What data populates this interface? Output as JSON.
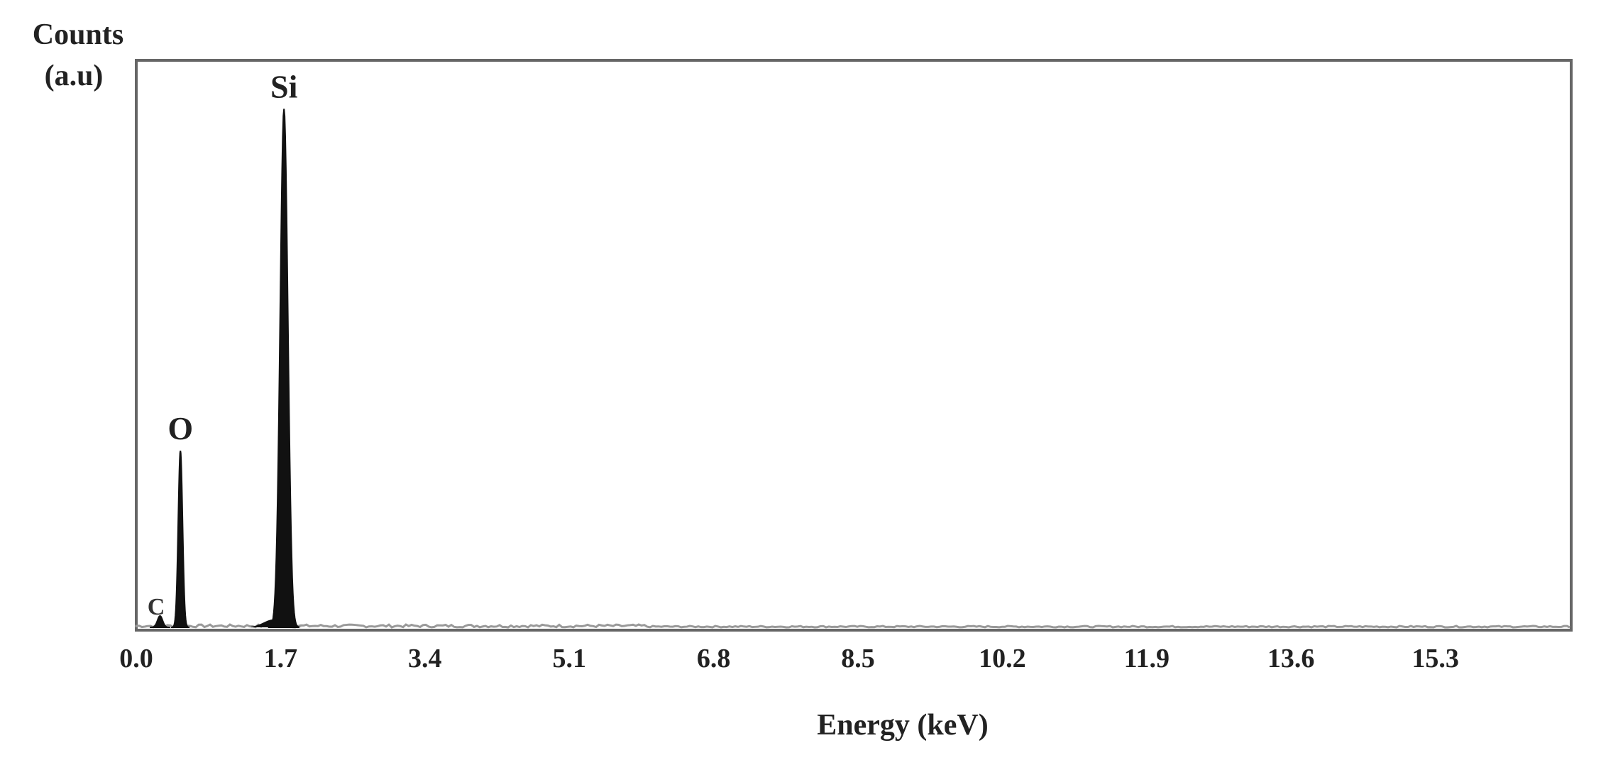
{
  "chart_data": {
    "type": "line",
    "ylabel_line1": "Counts",
    "ylabel_line2": "(a.u)",
    "xlabel": "Energy (keV)",
    "xlim": [
      0.0,
      16.9
    ],
    "ylim": [
      0,
      100
    ],
    "x_ticks": [
      "0.0",
      "1.7",
      "3.4",
      "5.1",
      "6.8",
      "8.5",
      "10.2",
      "11.9",
      "13.6",
      "15.3"
    ],
    "x_tick_values": [
      0.0,
      1.7,
      3.4,
      5.1,
      6.8,
      8.5,
      10.2,
      11.9,
      13.6,
      15.3
    ],
    "grid": false,
    "peaks": [
      {
        "label": "C",
        "energy": 0.28,
        "counts": 2
      },
      {
        "label": "O",
        "energy": 0.52,
        "counts": 31
      },
      {
        "label": "Si",
        "energy": 1.74,
        "counts": 91
      }
    ],
    "colors": {
      "line": "#111111",
      "frame": "#666666",
      "baseline": "#999999"
    }
  }
}
